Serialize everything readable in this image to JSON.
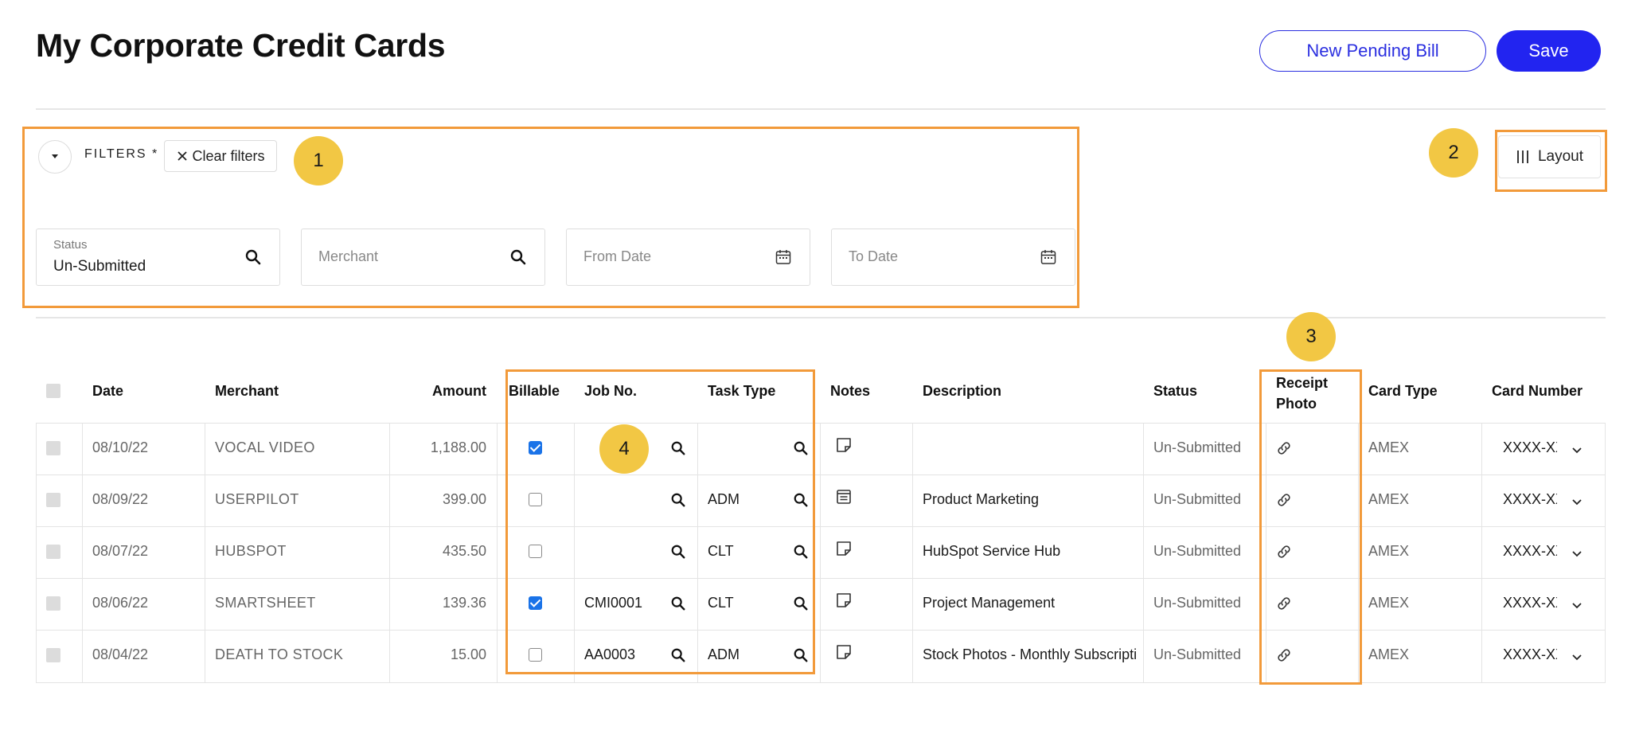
{
  "header": {
    "title": "My Corporate Credit Cards",
    "new_pending_bill_label": "New Pending Bill",
    "save_label": "Save"
  },
  "filters": {
    "label": "FILTERS *",
    "clear_label": "Clear filters",
    "status": {
      "label": "Status",
      "value": "Un-Submitted"
    },
    "merchant": {
      "placeholder": "Merchant"
    },
    "from_date": {
      "placeholder": "From Date"
    },
    "to_date": {
      "placeholder": "To Date"
    }
  },
  "layout_button": {
    "label": "Layout"
  },
  "annotations": [
    "1",
    "2",
    "3",
    "4"
  ],
  "table": {
    "headers": {
      "date": "Date",
      "merchant": "Merchant",
      "amount": "Amount",
      "billable": "Billable",
      "job_no": "Job No.",
      "task_type": "Task Type",
      "notes": "Notes",
      "description": "Description",
      "status": "Status",
      "receipt_photo_1": "Receipt",
      "receipt_photo_2": "Photo",
      "card_type": "Card Type",
      "card_number": "Card Number"
    },
    "rows": [
      {
        "date": "08/10/22",
        "merchant": "VOCAL VIDEO",
        "amount": "1,188.00",
        "billable": true,
        "job_no": "",
        "task_type": "",
        "notes_icon": "sticky-note-icon",
        "description": "",
        "status": "Un-Submitted",
        "card_type": "AMEX",
        "card_number": "XXXX-XXXX"
      },
      {
        "date": "08/09/22",
        "merchant": "USERPILOT",
        "amount": "399.00",
        "billable": false,
        "job_no": "",
        "task_type": "ADM",
        "notes_icon": "note-lines-icon",
        "description": "Product Marketing",
        "status": "Un-Submitted",
        "card_type": "AMEX",
        "card_number": "XXXX-XXXX"
      },
      {
        "date": "08/07/22",
        "merchant": "HUBSPOT",
        "amount": "435.50",
        "billable": false,
        "job_no": "",
        "task_type": "CLT",
        "notes_icon": "sticky-note-icon",
        "description": "HubSpot Service Hub",
        "status": "Un-Submitted",
        "card_type": "AMEX",
        "card_number": "XXXX-XXXX"
      },
      {
        "date": "08/06/22",
        "merchant": "SMARTSHEET",
        "amount": "139.36",
        "billable": true,
        "job_no": "CMI0001",
        "task_type": "CLT",
        "notes_icon": "sticky-note-icon",
        "description": "Project Management",
        "status": "Un-Submitted",
        "card_type": "AMEX",
        "card_number": "XXXX-XXXX"
      },
      {
        "date": "08/04/22",
        "merchant": "DEATH TO STOCK",
        "amount": "15.00",
        "billable": false,
        "job_no": "AA0003",
        "task_type": "ADM",
        "notes_icon": "sticky-note-icon",
        "description": "Stock Photos - Monthly Subscription",
        "status": "Un-Submitted",
        "card_type": "AMEX",
        "card_number": "XXXX-XXXX"
      }
    ]
  },
  "colors": {
    "accent": "#2224f0",
    "annotation_box": "#f29a3a",
    "annotation_circle": "#f2c744",
    "checkbox_checked": "#1a73e8"
  }
}
